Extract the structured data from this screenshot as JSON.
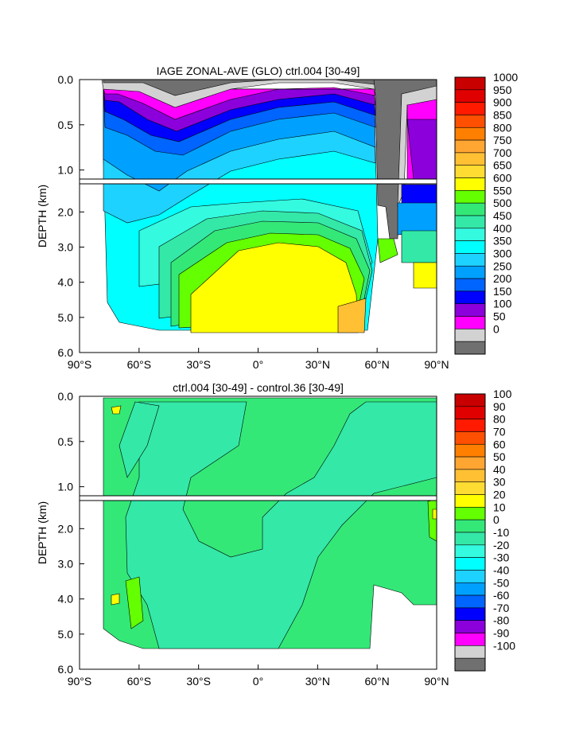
{
  "chart_data": [
    {
      "type": "heatmap",
      "title": "IAGE ZONAL-AVE (GLO) ctrl.004 [30-49]",
      "ylabel": "DEPTH (km)",
      "xlabel": "",
      "x_ticks": [
        "90°S",
        "60°S",
        "30°S",
        "0°",
        "30°N",
        "60°N",
        "90°N"
      ],
      "y_ticks_upper": [
        "0.0",
        "0.5",
        "1.0"
      ],
      "y_ticks_lower": [
        "2.0",
        "3.0",
        "4.0",
        "5.0",
        "6.0"
      ],
      "ylim": [
        0,
        6
      ],
      "xlim": [
        -90,
        90
      ],
      "colorbar_levels": [
        "1000",
        "950",
        "900",
        "850",
        "800",
        "750",
        "700",
        "650",
        "600",
        "550",
        "500",
        "450",
        "400",
        "350",
        "300",
        "250",
        "200",
        "150",
        "100",
        "50",
        "0"
      ],
      "colorbar_colors": [
        "#c80000",
        "#e00000",
        "#ff1a00",
        "#ff4f00",
        "#ff7f00",
        "#ffa532",
        "#ffc034",
        "#ffdc32",
        "#ffff00",
        "#64ff00",
        "#34e878",
        "#34e8a8",
        "#34fae0",
        "#00ffff",
        "#1ed2ff",
        "#00a0ff",
        "#0064ff",
        "#0000ff",
        "#8c00dc",
        "#ff00ff",
        "#d2d2d2",
        "#707070"
      ]
    },
    {
      "type": "heatmap",
      "title": "ctrl.004 [30-49] - control.36 [30-49]",
      "ylabel": "DEPTH (km)",
      "xlabel": "",
      "x_ticks": [
        "90°S",
        "60°S",
        "30°S",
        "0°",
        "30°N",
        "60°N",
        "90°N"
      ],
      "y_ticks_upper": [
        "0.0",
        "0.5",
        "1.0"
      ],
      "y_ticks_lower": [
        "2.0",
        "3.0",
        "4.0",
        "5.0",
        "6.0"
      ],
      "ylim": [
        0,
        6
      ],
      "xlim": [
        -90,
        90
      ],
      "colorbar_levels": [
        "100",
        "90",
        "80",
        "70",
        "60",
        "50",
        "40",
        "30",
        "20",
        "10",
        "0",
        "-10",
        "-20",
        "-30",
        "-40",
        "-50",
        "-60",
        "-70",
        "-80",
        "-90",
        "-100"
      ],
      "colorbar_colors": [
        "#c80000",
        "#e00000",
        "#ff1a00",
        "#ff4f00",
        "#ff7f00",
        "#ffa532",
        "#ffc034",
        "#ffdc32",
        "#ffff00",
        "#64ff00",
        "#34e878",
        "#34e8a8",
        "#34fae0",
        "#00ffff",
        "#1ed2ff",
        "#00a0ff",
        "#0064ff",
        "#0000ff",
        "#8c00dc",
        "#ff00ff",
        "#d2d2d2",
        "#707070"
      ]
    }
  ]
}
